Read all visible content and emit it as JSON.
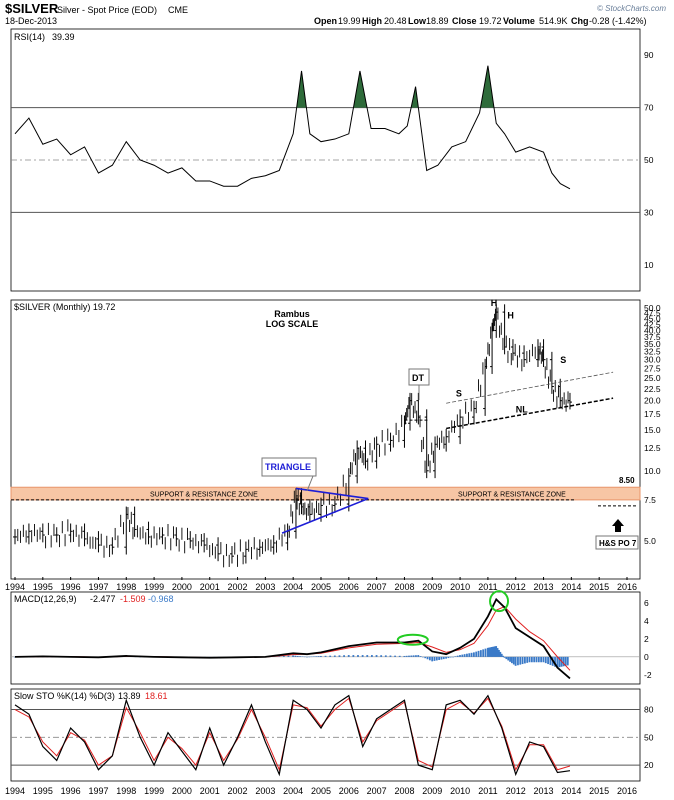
{
  "header": {
    "symbol": "$SILVER",
    "name": "Silver - Spot Price (EOD)",
    "exchange": "CME",
    "date": "18-Dec-2013",
    "open_label": "Open",
    "open": "19.99",
    "high_label": "High",
    "high": "20.48",
    "low_label": "Low",
    "low": "18.89",
    "close_label": "Close",
    "close": "19.72",
    "volume_label": "Volume",
    "volume": "514.9K",
    "chg_label": "Chg",
    "chg": "-0.28 (-1.42%)",
    "brand": "© StockCharts.com"
  },
  "colors": {
    "price": "#000000",
    "rsi_fill": "#2e6b3a",
    "zone_fill": "#f7c6a5",
    "zone_border": "#e8956a",
    "macd_signal": "#e02020",
    "macd_hist": "#3a7ac8",
    "green_circle": "#22cc22",
    "triangle_blue": "#1d1dd6"
  },
  "chart_data": [
    {
      "type": "line",
      "title": "RSI(14) 39.39",
      "label_key": "RSI(14)",
      "label_value": "39.39",
      "ylim": [
        0,
        100
      ],
      "yticks": [
        10,
        30,
        50,
        70,
        90
      ],
      "reference_lines": [
        70,
        50,
        30
      ],
      "x": [
        1994.0,
        1994.5,
        1995.0,
        1995.5,
        1996.0,
        1996.5,
        1997.0,
        1997.5,
        1998.0,
        1998.5,
        1999.0,
        1999.5,
        2000.0,
        2000.5,
        2001.0,
        2001.5,
        2002.0,
        2002.5,
        2003.0,
        2003.5,
        2004.0,
        2004.3,
        2004.6,
        2005.0,
        2005.5,
        2006.0,
        2006.4,
        2006.8,
        2007.3,
        2007.8,
        2008.1,
        2008.4,
        2008.8,
        2009.2,
        2009.7,
        2010.2,
        2010.7,
        2011.0,
        2011.3,
        2011.6,
        2012.0,
        2012.5,
        2013.0,
        2013.3,
        2013.6,
        2013.95
      ],
      "values": [
        60,
        66,
        56,
        58,
        52,
        55,
        45,
        48,
        57,
        50,
        48,
        45,
        47,
        42,
        42,
        40,
        40,
        43,
        44,
        46,
        60,
        84,
        60,
        57,
        58,
        60,
        84,
        62,
        62,
        60,
        63,
        78,
        46,
        48,
        55,
        57,
        68,
        86,
        64,
        60,
        53,
        55,
        53,
        45,
        41,
        39
      ]
    },
    {
      "type": "bar",
      "subtype": "ohlc",
      "title": "$SILVER (Monthly) 19.72",
      "annotation_title": "Rambus",
      "annotation_subtitle": "LOG SCALE",
      "scale": "log",
      "ylim": [
        3.5,
        52
      ],
      "yticks": [
        5.0,
        7.5,
        10.0,
        12.5,
        15.0,
        17.5,
        20.0,
        22.5,
        25.0,
        27.5,
        30.0,
        32.5,
        35.0,
        37.5,
        40.0,
        42.5,
        45.0,
        47.5,
        50.0
      ],
      "ytick_labels": [
        "5.0",
        "7.5",
        "10.0",
        "12.5",
        "15.0",
        "17.5",
        "20.0",
        "22.5",
        "25.0",
        "27.5",
        "30.0",
        "32.5",
        "35.0",
        "37.5",
        "40.0",
        "42.5",
        "45.0",
        "47.5",
        "50.0"
      ],
      "x": [
        1994.0,
        1994.5,
        1995.0,
        1995.5,
        1996.0,
        1996.5,
        1997.0,
        1997.5,
        1998.0,
        1998.3,
        1998.8,
        1999.3,
        1999.8,
        2000.3,
        2000.8,
        2001.3,
        2001.8,
        2002.3,
        2002.8,
        2003.3,
        2003.8,
        2004.1,
        2004.3,
        2004.6,
        2005.0,
        2005.5,
        2006.0,
        2006.3,
        2006.6,
        2007.0,
        2007.5,
        2008.0,
        2008.2,
        2008.5,
        2008.8,
        2009.1,
        2009.5,
        2010.0,
        2010.5,
        2010.9,
        2011.15,
        2011.3,
        2011.6,
        2011.9,
        2012.3,
        2012.8,
        2013.0,
        2013.3,
        2013.6,
        2013.95
      ],
      "values": [
        5.2,
        5.5,
        5.3,
        5.3,
        5.5,
        5.1,
        4.8,
        4.7,
        6.5,
        5.6,
        5.2,
        5.3,
        5.1,
        5.0,
        4.8,
        4.4,
        4.3,
        4.6,
        4.7,
        4.9,
        5.5,
        7.8,
        7.0,
        6.5,
        7.1,
        7.2,
        9.5,
        12.5,
        11.0,
        13.0,
        13.5,
        16.0,
        20.0,
        17.0,
        10.0,
        13.0,
        14.0,
        17.0,
        18.5,
        28.0,
        40.0,
        48.0,
        34.0,
        32.0,
        30.0,
        34.0,
        30.0,
        23.0,
        20.0,
        19.72
      ],
      "support_zone": [
        7.5,
        8.5
      ],
      "support_zone_label": "SUPPORT & RESISTANCE ZONE",
      "level_label": "8.50",
      "target_label": "H&S PO 7",
      "triangle_label": "TRIANGLE",
      "dt_label": "DT",
      "neckline_label": "NL",
      "head_label": "H",
      "shoulder_label": "S"
    },
    {
      "type": "line",
      "title": "MACD(12,26,9)",
      "label_key": "MACD(12,26,9)",
      "macd_value": "-2.477",
      "signal_value": "-1.509",
      "hist_value": "-0.968",
      "ylim": [
        -2.8,
        7
      ],
      "yticks": [
        -2,
        0,
        2,
        4,
        6
      ],
      "x": [
        1994,
        1995,
        1996,
        1997,
        1998,
        1999,
        2000,
        2001,
        2002,
        2003,
        2004,
        2004.5,
        2005,
        2006,
        2007,
        2008,
        2008.5,
        2009,
        2009.5,
        2010,
        2010.5,
        2011,
        2011.3,
        2011.6,
        2012,
        2012.5,
        2013,
        2013.5,
        2013.95
      ],
      "series": [
        {
          "values": [
            0.0,
            0.05,
            0.0,
            -0.05,
            0.1,
            0.0,
            -0.05,
            -0.1,
            -0.05,
            0.0,
            0.4,
            0.3,
            0.5,
            1.2,
            1.6,
            1.6,
            1.8,
            0.6,
            0.3,
            1.0,
            2.0,
            4.5,
            6.4,
            5.5,
            3.2,
            2.2,
            1.2,
            -1.2,
            -2.4
          ]
        },
        {
          "values": [
            0.0,
            0.03,
            0.02,
            -0.03,
            0.05,
            0.02,
            -0.03,
            -0.08,
            -0.06,
            -0.01,
            0.25,
            0.3,
            0.4,
            1.0,
            1.4,
            1.5,
            1.6,
            1.1,
            0.5,
            0.8,
            1.5,
            3.5,
            5.2,
            5.6,
            4.2,
            2.8,
            1.8,
            0.0,
            -1.5
          ]
        }
      ]
    },
    {
      "type": "line",
      "title": "Slow STO %K(14) %D(3)",
      "label_key": "Slow STO %K(14) %D(3)",
      "k_value": "13.89",
      "d_value": "18.61",
      "ylim": [
        5,
        100
      ],
      "yticks": [
        20,
        50,
        80
      ],
      "reference_lines": [
        80,
        50,
        20
      ],
      "x": [
        1994,
        1994.5,
        1995,
        1995.5,
        1996,
        1996.5,
        1997,
        1997.5,
        1998,
        1998.5,
        1999,
        1999.5,
        2000,
        2000.5,
        2001,
        2001.5,
        2002,
        2002.5,
        2003,
        2003.5,
        2004,
        2004.5,
        2005,
        2005.5,
        2006,
        2006.5,
        2007,
        2007.5,
        2008,
        2008.5,
        2009,
        2009.5,
        2010,
        2010.5,
        2011,
        2011.5,
        2012,
        2012.5,
        2013,
        2013.5,
        2013.95
      ],
      "series": [
        {
          "values": [
            85,
            75,
            40,
            25,
            60,
            45,
            15,
            30,
            90,
            50,
            20,
            55,
            35,
            15,
            60,
            20,
            50,
            85,
            45,
            10,
            90,
            80,
            60,
            85,
            95,
            40,
            70,
            80,
            90,
            20,
            15,
            85,
            90,
            75,
            95,
            60,
            10,
            45,
            40,
            12,
            14
          ]
        },
        {
          "values": [
            80,
            72,
            45,
            30,
            55,
            47,
            20,
            30,
            82,
            55,
            25,
            50,
            38,
            20,
            55,
            25,
            48,
            80,
            50,
            15,
            85,
            82,
            62,
            80,
            92,
            45,
            68,
            78,
            88,
            25,
            18,
            80,
            88,
            76,
            92,
            62,
            15,
            42,
            42,
            15,
            19
          ]
        }
      ]
    }
  ],
  "x_axis": {
    "years": [
      "1994",
      "1995",
      "1996",
      "1997",
      "1998",
      "1999",
      "2000",
      "2001",
      "2002",
      "2003",
      "2004",
      "2005",
      "2006",
      "2007",
      "2008",
      "2009",
      "2010",
      "2011",
      "2012",
      "2013",
      "2014",
      "2015",
      "2016"
    ]
  }
}
